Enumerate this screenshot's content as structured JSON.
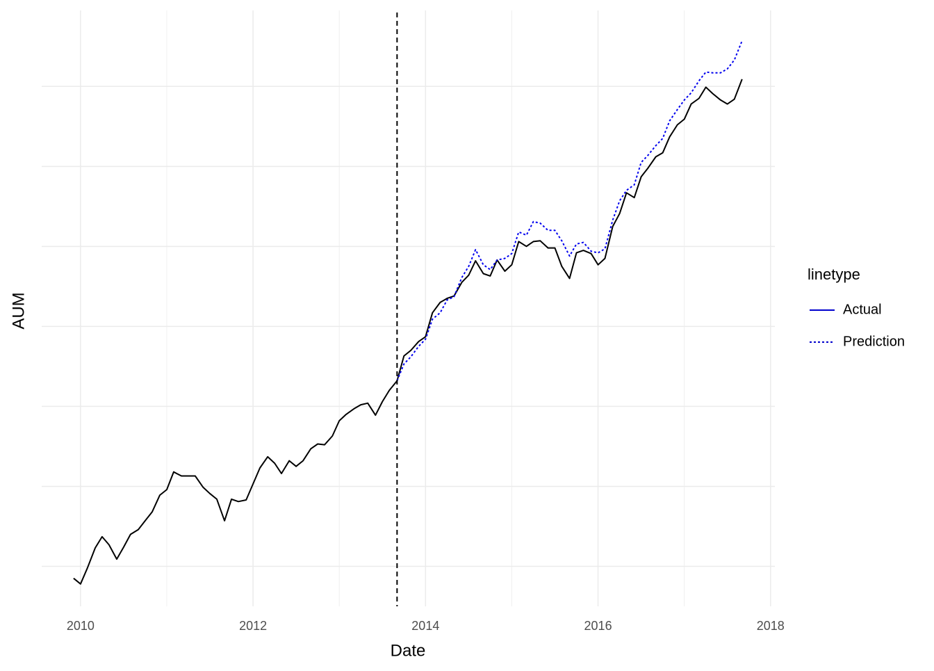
{
  "chart_data": {
    "type": "line",
    "x_label": "Date",
    "y_label": "AUM",
    "x": [
      2009.92,
      2010.0,
      2010.08,
      2010.17,
      2010.25,
      2010.33,
      2010.42,
      2010.5,
      2010.58,
      2010.67,
      2010.75,
      2010.83,
      2010.92,
      2011.0,
      2011.08,
      2011.17,
      2011.25,
      2011.33,
      2011.42,
      2011.5,
      2011.58,
      2011.67,
      2011.75,
      2011.83,
      2011.92,
      2012.0,
      2012.08,
      2012.17,
      2012.25,
      2012.33,
      2012.42,
      2012.5,
      2012.58,
      2012.67,
      2012.75,
      2012.83,
      2012.92,
      2013.0,
      2013.08,
      2013.17,
      2013.25,
      2013.33,
      2013.42,
      2013.5,
      2013.58,
      2013.67,
      2013.75,
      2013.83,
      2013.92,
      2014.0,
      2014.08,
      2014.17,
      2014.25,
      2014.33,
      2014.42,
      2014.5,
      2014.58,
      2014.67,
      2014.75,
      2014.83,
      2014.92,
      2015.0,
      2015.08,
      2015.17,
      2015.25,
      2015.33,
      2015.42,
      2015.5,
      2015.58,
      2015.67,
      2015.75,
      2015.83,
      2015.92,
      2016.0,
      2016.08,
      2016.17,
      2016.25,
      2016.33,
      2016.42,
      2016.5,
      2016.58,
      2016.67,
      2016.75,
      2016.83,
      2016.92,
      2017.0,
      2017.08,
      2017.17,
      2017.25,
      2017.33,
      2017.42,
      2017.5,
      2017.58,
      2017.67
    ],
    "series": [
      {
        "name": "Actual",
        "color": "#000000",
        "linestyle": "solid",
        "values": [
          -0.15,
          -0.22,
          -0.02,
          0.23,
          0.37,
          0.27,
          0.09,
          0.24,
          0.4,
          0.46,
          0.57,
          0.68,
          0.89,
          0.96,
          1.18,
          1.13,
          1.13,
          1.13,
          0.99,
          0.91,
          0.84,
          0.57,
          0.84,
          0.81,
          0.83,
          1.03,
          1.23,
          1.37,
          1.29,
          1.16,
          1.32,
          1.25,
          1.32,
          1.47,
          1.53,
          1.52,
          1.63,
          1.82,
          1.9,
          1.97,
          2.02,
          2.04,
          1.89,
          2.06,
          2.2,
          2.32,
          2.63,
          2.7,
          2.81,
          2.87,
          3.17,
          3.3,
          3.35,
          3.38,
          3.55,
          3.64,
          3.82,
          3.66,
          3.63,
          3.83,
          3.69,
          3.77,
          4.06,
          4.0,
          4.06,
          4.07,
          3.98,
          3.98,
          3.75,
          3.6,
          3.92,
          3.95,
          3.91,
          3.77,
          3.85,
          4.25,
          4.41,
          4.67,
          4.61,
          4.87,
          4.98,
          5.12,
          5.17,
          5.37,
          5.52,
          5.59,
          5.78,
          5.85,
          5.99,
          5.91,
          5.83,
          5.78,
          5.84,
          6.09
        ]
      },
      {
        "name": "Prediction",
        "color": "#0000ee",
        "linestyle": "dotted",
        "values": [
          null,
          null,
          null,
          null,
          null,
          null,
          null,
          null,
          null,
          null,
          null,
          null,
          null,
          null,
          null,
          null,
          null,
          null,
          null,
          null,
          null,
          null,
          null,
          null,
          null,
          null,
          null,
          null,
          null,
          null,
          null,
          null,
          null,
          null,
          null,
          null,
          null,
          null,
          null,
          null,
          null,
          null,
          null,
          null,
          null,
          2.32,
          2.53,
          2.62,
          2.75,
          2.84,
          3.09,
          3.17,
          3.33,
          3.37,
          3.61,
          3.75,
          3.96,
          3.77,
          3.71,
          3.83,
          3.85,
          3.91,
          4.18,
          4.14,
          4.31,
          4.29,
          4.2,
          4.2,
          4.07,
          3.88,
          4.03,
          4.05,
          3.94,
          3.92,
          3.97,
          4.33,
          4.57,
          4.7,
          4.77,
          5.05,
          5.14,
          5.26,
          5.35,
          5.57,
          5.71,
          5.83,
          5.92,
          6.07,
          6.18,
          6.17,
          6.17,
          6.22,
          6.33,
          6.57
        ]
      }
    ],
    "legend_title": "linetype",
    "legend_key_color": "#0000cd",
    "legend_position": "right",
    "vline": 2013.67,
    "xlim": [
      2009.55,
      2018.05
    ],
    "xticks": [
      2010,
      2012,
      2014,
      2016,
      2018
    ],
    "x_minor_ticks": [
      2011,
      2013,
      2015,
      2017
    ],
    "ylim": [
      -0.5,
      6.95
    ],
    "yticks": [
      0,
      1,
      2,
      3,
      4,
      5,
      6
    ],
    "y_tick_labels": false,
    "grid": true
  }
}
